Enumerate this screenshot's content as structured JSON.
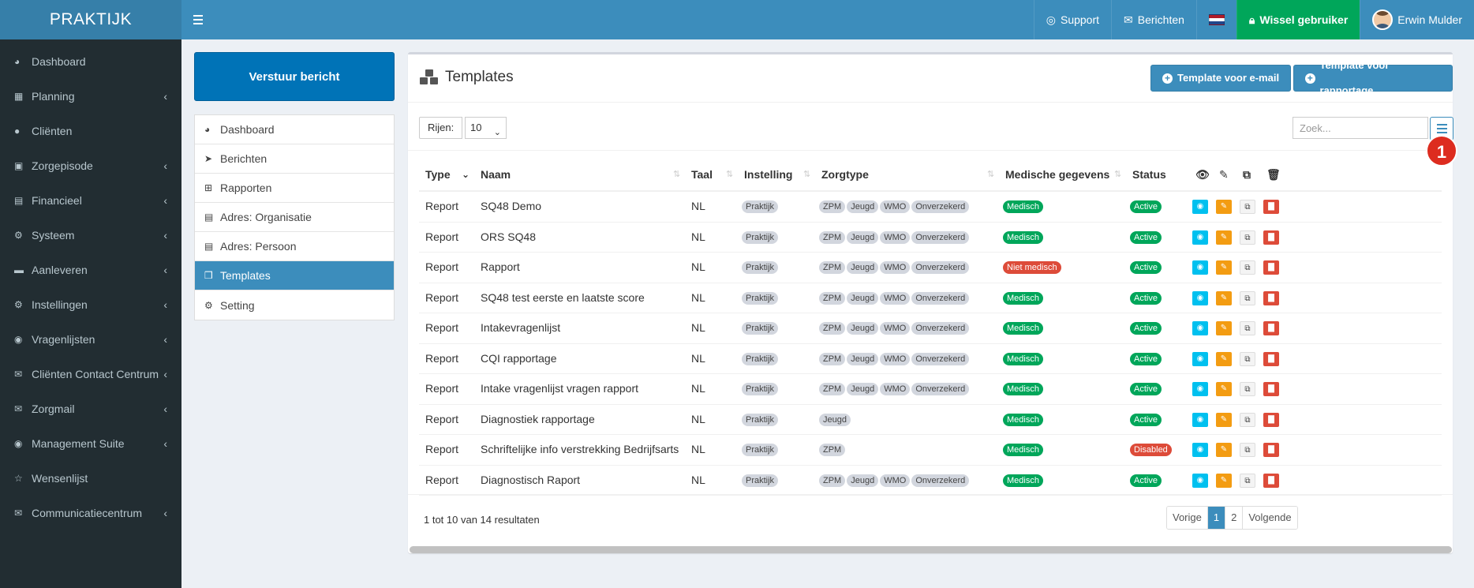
{
  "app": {
    "brand": "PRAKTIJK"
  },
  "topnav": {
    "support": "Support",
    "berichten": "Berichten",
    "switch_user": "Wissel gebruiker",
    "user_name": "Erwin Mulder"
  },
  "sidebar": {
    "items": [
      {
        "label": "Dashboard",
        "icon": "dashboard-icon",
        "glyph": "◕",
        "chevron": false
      },
      {
        "label": "Planning",
        "icon": "calendar-icon",
        "glyph": "▦",
        "chevron": true
      },
      {
        "label": "Cliënten",
        "icon": "user-icon",
        "glyph": "●",
        "chevron": false
      },
      {
        "label": "Zorgepisode",
        "icon": "medkit-icon",
        "glyph": "▣",
        "chevron": true
      },
      {
        "label": "Financieel",
        "icon": "book-icon",
        "glyph": "▤",
        "chevron": true
      },
      {
        "label": "Systeem",
        "icon": "cogs-icon",
        "glyph": "⚙",
        "chevron": true
      },
      {
        "label": "Aanleveren",
        "icon": "truck-icon",
        "glyph": "▬",
        "chevron": true
      },
      {
        "label": "Instellingen",
        "icon": "gear-icon",
        "glyph": "⚙",
        "chevron": true
      },
      {
        "label": "Vragenlijsten",
        "icon": "globe-icon",
        "glyph": "◉",
        "chevron": true
      },
      {
        "label": "Cliënten Contact Centrum",
        "icon": "envelope-icon",
        "glyph": "✉",
        "chevron": true
      },
      {
        "label": "Zorgmail",
        "icon": "envelope-icon",
        "glyph": "✉",
        "chevron": true
      },
      {
        "label": "Management Suite",
        "icon": "globe-icon",
        "glyph": "◉",
        "chevron": true
      },
      {
        "label": "Wensenlijst",
        "icon": "star-icon",
        "glyph": "☆",
        "chevron": false
      },
      {
        "label": "Communicatiecentrum",
        "icon": "envelope-icon",
        "glyph": "✉",
        "chevron": true
      }
    ]
  },
  "left_panel": {
    "send_button": "Verstuur bericht",
    "nav": [
      {
        "label": "Dashboard",
        "icon": "dashboard-icon",
        "glyph": "◕",
        "active": false
      },
      {
        "label": "Berichten",
        "icon": "paper-plane-icon",
        "glyph": "➤",
        "active": false
      },
      {
        "label": "Rapporten",
        "icon": "sitemap-icon",
        "glyph": "⊞",
        "active": false
      },
      {
        "label": "Adres: Organisatie",
        "icon": "book-icon",
        "glyph": "▤",
        "active": false
      },
      {
        "label": "Adres: Persoon",
        "icon": "book-icon",
        "glyph": "▤",
        "active": false
      },
      {
        "label": "Templates",
        "icon": "cubes-icon",
        "glyph": "❒",
        "active": true
      },
      {
        "label": "Setting",
        "icon": "cogs-icon",
        "glyph": "⚙",
        "active": false
      }
    ]
  },
  "main": {
    "title": "Templates",
    "btn_email": "Template voor e-mail",
    "btn_report": "Template voor rapportage",
    "rows_label": "Rijen:",
    "rows_value": "10",
    "search_placeholder": "Zoek...",
    "badge": "1",
    "columns": {
      "type": "Type",
      "naam": "Naam",
      "taal": "Taal",
      "instelling": "Instelling",
      "zorgtype": "Zorgtype",
      "medisch": "Medische gegevens",
      "status": "Status"
    },
    "rows": [
      {
        "type": "Report",
        "naam": "SQ48 Demo",
        "taal": "NL",
        "instelling": "Praktijk",
        "zorgtypes": [
          "ZPM",
          "Jeugd",
          "WMO",
          "Onverzekerd"
        ],
        "medisch": "Medisch",
        "medisch_color": "green",
        "status": "Active",
        "status_color": "green"
      },
      {
        "type": "Report",
        "naam": "ORS SQ48",
        "taal": "NL",
        "instelling": "Praktijk",
        "zorgtypes": [
          "ZPM",
          "Jeugd",
          "WMO",
          "Onverzekerd"
        ],
        "medisch": "Medisch",
        "medisch_color": "green",
        "status": "Active",
        "status_color": "green"
      },
      {
        "type": "Report",
        "naam": "Rapport",
        "taal": "NL",
        "instelling": "Praktijk",
        "zorgtypes": [
          "ZPM",
          "Jeugd",
          "WMO",
          "Onverzekerd"
        ],
        "medisch": "Niet medisch",
        "medisch_color": "red",
        "status": "Active",
        "status_color": "green"
      },
      {
        "type": "Report",
        "naam": "SQ48 test eerste en laatste score",
        "taal": "NL",
        "instelling": "Praktijk",
        "zorgtypes": [
          "ZPM",
          "Jeugd",
          "WMO",
          "Onverzekerd"
        ],
        "medisch": "Medisch",
        "medisch_color": "green",
        "status": "Active",
        "status_color": "green"
      },
      {
        "type": "Report",
        "naam": "Intakevragenlijst",
        "taal": "NL",
        "instelling": "Praktijk",
        "zorgtypes": [
          "ZPM",
          "Jeugd",
          "WMO",
          "Onverzekerd"
        ],
        "medisch": "Medisch",
        "medisch_color": "green",
        "status": "Active",
        "status_color": "green"
      },
      {
        "type": "Report",
        "naam": "CQI rapportage",
        "taal": "NL",
        "instelling": "Praktijk",
        "zorgtypes": [
          "ZPM",
          "Jeugd",
          "WMO",
          "Onverzekerd"
        ],
        "medisch": "Medisch",
        "medisch_color": "green",
        "status": "Active",
        "status_color": "green"
      },
      {
        "type": "Report",
        "naam": "Intake vragenlijst vragen rapport",
        "taal": "NL",
        "instelling": "Praktijk",
        "zorgtypes": [
          "ZPM",
          "Jeugd",
          "WMO",
          "Onverzekerd"
        ],
        "medisch": "Medisch",
        "medisch_color": "green",
        "status": "Active",
        "status_color": "green"
      },
      {
        "type": "Report",
        "naam": "Diagnostiek rapportage",
        "taal": "NL",
        "instelling": "Praktijk",
        "zorgtypes": [
          "Jeugd"
        ],
        "medisch": "Medisch",
        "medisch_color": "green",
        "status": "Active",
        "status_color": "green"
      },
      {
        "type": "Report",
        "naam": "Schriftelijke info verstrekking Bedrijfsarts",
        "taal": "NL",
        "instelling": "Praktijk",
        "zorgtypes": [
          "ZPM"
        ],
        "medisch": "Medisch",
        "medisch_color": "green",
        "status": "Disabled",
        "status_color": "red"
      },
      {
        "type": "Report",
        "naam": "Diagnostisch Raport",
        "taal": "NL",
        "instelling": "Praktijk",
        "zorgtypes": [
          "ZPM",
          "Jeugd",
          "WMO",
          "Onverzekerd"
        ],
        "medisch": "Medisch",
        "medisch_color": "green",
        "status": "Active",
        "status_color": "green"
      }
    ],
    "footer_text": "1 tot 10 van 14 resultaten",
    "pager": {
      "prev": "Vorige",
      "pages": [
        "1",
        "2"
      ],
      "current": "1",
      "next": "Volgende"
    }
  },
  "colors": {
    "topbar": "#3c8dbc",
    "brand_bg": "#367fa9",
    "sidebar": "#222d32",
    "green": "#00a65a",
    "red": "#dd4b39",
    "info": "#00c0ef",
    "warning": "#f39c12",
    "send_button": "#0073b7"
  }
}
